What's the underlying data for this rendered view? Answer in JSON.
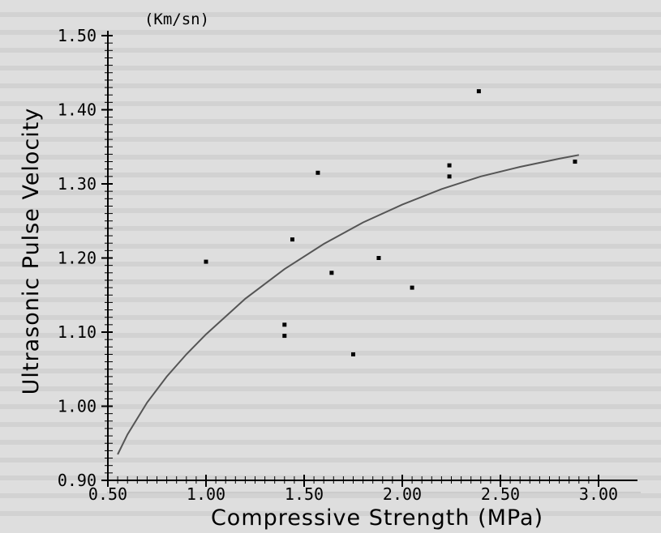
{
  "chart_data": {
    "type": "scatter",
    "title": "",
    "xlabel": "Compressive Strength (MPa)",
    "ylabel": "Ultrasonic Pulse Velocity",
    "yunit": "(Km/sn)",
    "xlim": [
      0.5,
      3.0
    ],
    "ylim": [
      0.9,
      1.5
    ],
    "xticks": [
      "0.50",
      "1.00",
      "1.50",
      "2.00",
      "2.50",
      "3.00"
    ],
    "yticks": [
      "0.90",
      "1.00",
      "1.10",
      "1.20",
      "1.30",
      "1.40",
      "1.50"
    ],
    "grid": false,
    "legend": "none",
    "points": [
      {
        "x": 1.0,
        "y": 1.195
      },
      {
        "x": 1.4,
        "y": 1.11
      },
      {
        "x": 1.4,
        "y": 1.095
      },
      {
        "x": 1.44,
        "y": 1.225
      },
      {
        "x": 1.57,
        "y": 1.315
      },
      {
        "x": 1.64,
        "y": 1.18
      },
      {
        "x": 1.75,
        "y": 1.07
      },
      {
        "x": 1.88,
        "y": 1.2
      },
      {
        "x": 2.05,
        "y": 1.16
      },
      {
        "x": 2.24,
        "y": 1.325
      },
      {
        "x": 2.24,
        "y": 1.31
      },
      {
        "x": 2.39,
        "y": 1.425
      },
      {
        "x": 2.88,
        "y": 1.33
      }
    ],
    "fit_curve": {
      "x": [
        0.55,
        0.6,
        0.7,
        0.8,
        0.9,
        1.0,
        1.2,
        1.4,
        1.6,
        1.8,
        2.0,
        2.2,
        2.4,
        2.6,
        2.8,
        2.9
      ],
      "y": [
        0.935,
        0.962,
        1.005,
        1.04,
        1.07,
        1.097,
        1.145,
        1.185,
        1.219,
        1.248,
        1.272,
        1.293,
        1.31,
        1.323,
        1.334,
        1.339
      ]
    },
    "colors": {
      "points": "#000000",
      "curve": "#555555",
      "axis": "#000000"
    }
  }
}
